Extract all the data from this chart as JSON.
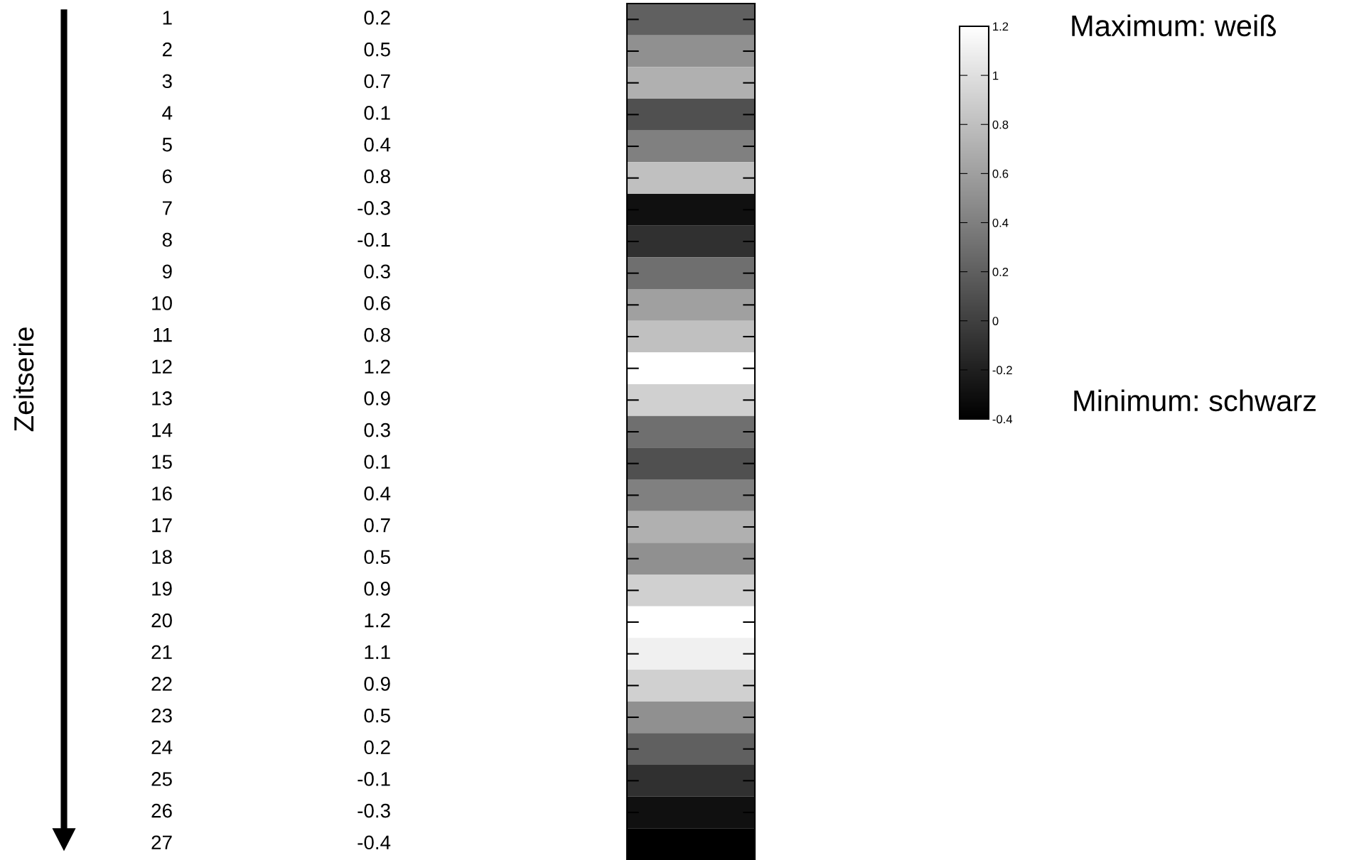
{
  "chart_data": {
    "type": "heatmap",
    "ylabel": "Zeitserie",
    "categories": [
      null
    ],
    "y_categories": [
      "1",
      "2",
      "3",
      "4",
      "5",
      "6",
      "7",
      "8",
      "9",
      "10",
      "11",
      "12",
      "13",
      "14",
      "15",
      "16",
      "17",
      "18",
      "19",
      "20",
      "21",
      "22",
      "23",
      "24",
      "25",
      "26",
      "27"
    ],
    "y2_categories": [
      "0.2",
      "0.5",
      "0.7",
      "0.1",
      "0.4",
      "0.8",
      "-0.3",
      "-0.1",
      "0.3",
      "0.6",
      "0.8",
      "1.2",
      "0.9",
      "0.3",
      "0.1",
      "0.4",
      "0.7",
      "0.5",
      "0.9",
      "1.2",
      "1.1",
      "0.9",
      "0.5",
      "0.2",
      "-0.1",
      "-0.3",
      "-0.4"
    ],
    "cells": [
      [
        0.2
      ],
      [
        0.5
      ],
      [
        0.7
      ],
      [
        0.1
      ],
      [
        0.4
      ],
      [
        0.8
      ],
      [
        -0.3
      ],
      [
        -0.1
      ],
      [
        0.3
      ],
      [
        0.6
      ],
      [
        0.8
      ],
      [
        1.2
      ],
      [
        0.9
      ],
      [
        0.3
      ],
      [
        0.1
      ],
      [
        0.4
      ],
      [
        0.7
      ],
      [
        0.5
      ],
      [
        0.9
      ],
      [
        1.2
      ],
      [
        1.1
      ],
      [
        0.9
      ],
      [
        0.5
      ],
      [
        0.2
      ],
      [
        -0.1
      ],
      [
        -0.3
      ],
      [
        -0.4
      ]
    ],
    "clim": [
      -0.4,
      1.2
    ],
    "cticks": [
      -0.4,
      -0.2,
      0,
      0.2,
      0.4,
      0.6,
      0.8,
      1,
      1.2
    ],
    "annotations": [
      "Maximum: weiß",
      "Minimum: schwarz"
    ]
  }
}
